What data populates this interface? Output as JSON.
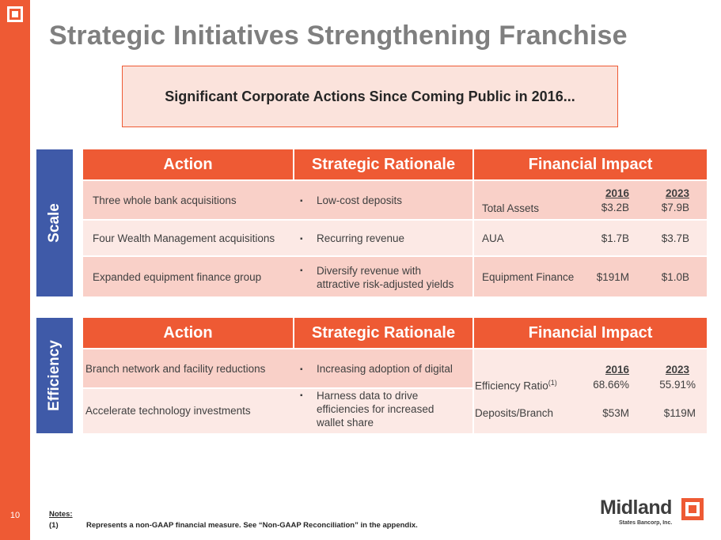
{
  "page": {
    "title": "Strategic Initiatives Strengthening Franchise",
    "callout": "Significant Corporate Actions Since Coming Public in 2016...",
    "page_number": "10"
  },
  "scale": {
    "label": "Scale",
    "headers": [
      "Action",
      "Strategic Rationale",
      "Financial Impact"
    ],
    "years": [
      "2016",
      "2023"
    ],
    "rows": [
      {
        "action": "Three whole bank acquisitions",
        "rationale": "Low-cost deposits",
        "metric": "Total Assets",
        "v2016": "$3.2B",
        "v2023": "$7.9B"
      },
      {
        "action": "Four Wealth Management acquisitions",
        "rationale": "Recurring revenue",
        "metric": "AUA",
        "v2016": "$1.7B",
        "v2023": "$3.7B"
      },
      {
        "action": "Expanded equipment finance group",
        "rationale": "Diversify revenue with attractive risk-adjusted yields",
        "metric": "Equipment Finance",
        "v2016": "$191M",
        "v2023": "$1.0B"
      }
    ]
  },
  "efficiency": {
    "label": "Efficiency",
    "headers": [
      "Action",
      "Strategic Rationale",
      "Financial Impact"
    ],
    "years": [
      "2016",
      "2023"
    ],
    "rows": [
      {
        "action": "Branch network and facility reductions",
        "rationale": "Increasing adoption of digital",
        "metric": "Efficiency Ratio",
        "metric_note": "(1)",
        "v2016": "68.66%",
        "v2023": "55.91%"
      },
      {
        "action": "Accelerate technology investments",
        "rationale": "Harness data to drive efficiencies for increased wallet share",
        "metric": "Deposits/Branch",
        "v2016": "$53M",
        "v2023": "$119M"
      }
    ]
  },
  "notes": {
    "heading": "Notes:",
    "number": "(1)",
    "text": "Represents a non-GAAP financial measure. See “Non-GAAP Reconciliation” in the appendix."
  },
  "brand": {
    "name": "Midland",
    "subtitle": "States Bancorp, Inc."
  },
  "colors": {
    "accent": "#ee5a34",
    "label_blue": "#3f5aa8",
    "row_dark": "#f9d0c8",
    "row_light": "#fce9e5",
    "title_gray": "#7f7f7f"
  }
}
